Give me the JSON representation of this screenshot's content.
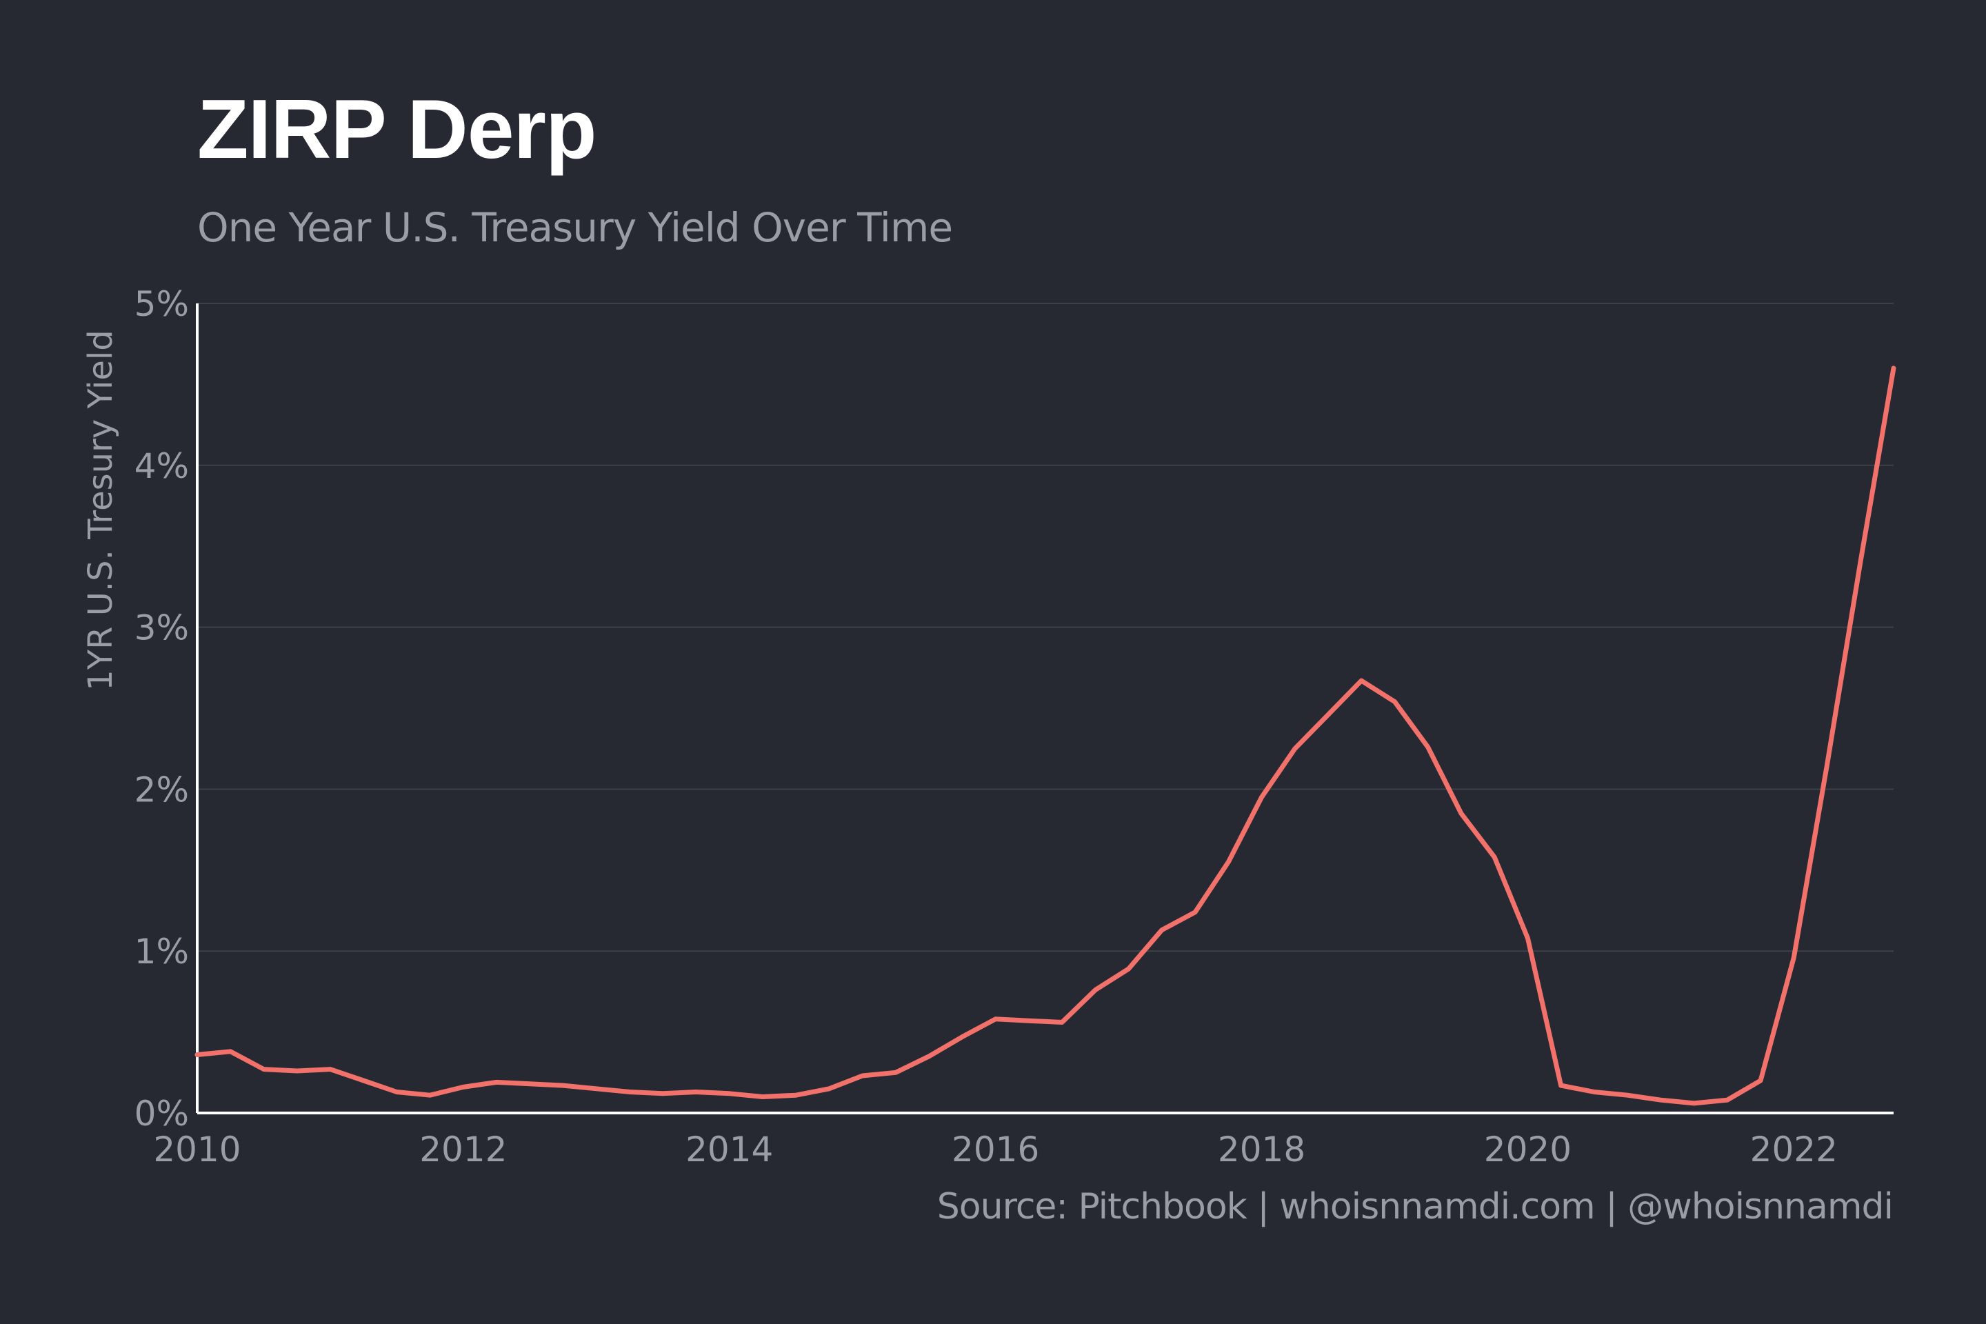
{
  "header": {
    "title": "ZIRP Derp",
    "subtitle": "One Year U.S. Treasury Yield Over Time"
  },
  "footer": {
    "source": "Source: Pitchbook | whoisnnamdi.com | @whoisnnamdi"
  },
  "colors": {
    "background": "#262931",
    "line": "#f2716b",
    "grid": "#3c4049",
    "text_muted": "#9a9da6",
    "title": "#ffffff"
  },
  "chart_data": {
    "type": "line",
    "title": "ZIRP Derp",
    "subtitle": "One Year U.S. Treasury Yield Over Time",
    "xlabel": "",
    "ylabel": "1YR U.S. Tresury Yield",
    "xlim": [
      2010.0,
      2022.75
    ],
    "ylim": [
      0,
      5
    ],
    "x_ticks": [
      2010,
      2012,
      2014,
      2016,
      2018,
      2020,
      2022
    ],
    "x_tick_labels": [
      "2010",
      "2012",
      "2014",
      "2016",
      "2018",
      "2020",
      "2022"
    ],
    "y_ticks": [
      0,
      1,
      2,
      3,
      4,
      5
    ],
    "y_tick_labels": [
      "0%",
      "1%",
      "2%",
      "3%",
      "4%",
      "5%"
    ],
    "grid": "horizontal",
    "series": [
      {
        "name": "1YR U.S. Treasury Yield",
        "x": [
          2010.0,
          2010.25,
          2010.5,
          2010.75,
          2011.0,
          2011.25,
          2011.5,
          2011.75,
          2012.0,
          2012.25,
          2012.5,
          2012.75,
          2013.0,
          2013.25,
          2013.5,
          2013.75,
          2014.0,
          2014.25,
          2014.5,
          2014.75,
          2015.0,
          2015.25,
          2015.5,
          2015.75,
          2016.0,
          2016.25,
          2016.5,
          2016.75,
          2017.0,
          2017.25,
          2017.5,
          2017.75,
          2018.0,
          2018.25,
          2018.5,
          2018.75,
          2019.0,
          2019.25,
          2019.5,
          2019.75,
          2020.0,
          2020.25,
          2020.5,
          2020.75,
          2021.0,
          2021.25,
          2021.5,
          2021.75,
          2022.0,
          2022.25,
          2022.5,
          2022.75
        ],
        "values": [
          0.36,
          0.38,
          0.27,
          0.26,
          0.27,
          0.2,
          0.13,
          0.11,
          0.16,
          0.19,
          0.18,
          0.17,
          0.15,
          0.13,
          0.12,
          0.13,
          0.12,
          0.1,
          0.11,
          0.15,
          0.23,
          0.25,
          0.35,
          0.47,
          0.58,
          0.57,
          0.56,
          0.76,
          0.89,
          1.13,
          1.24,
          1.55,
          1.95,
          2.25,
          2.46,
          2.67,
          2.54,
          2.26,
          1.85,
          1.58,
          1.08,
          0.17,
          0.13,
          0.11,
          0.08,
          0.06,
          0.08,
          0.2,
          0.96,
          2.15,
          3.4,
          4.6
        ]
      }
    ]
  }
}
